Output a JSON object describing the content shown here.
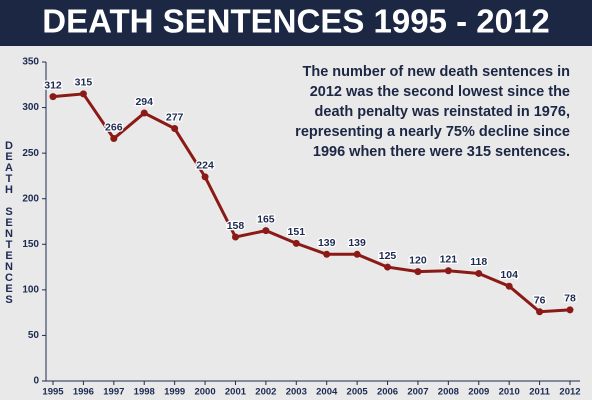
{
  "chart_data": {
    "type": "line",
    "title": "DEATH SENTENCES 1995 - 2012",
    "ylabel": "DEATH SENTENCES",
    "annotation": [
      "The number of new death sentences in",
      "2012 was the second lowest since the",
      "death penalty was reinstated in 1976,",
      "representing a nearly 75% decline since",
      "1996 when there were 315 sentences."
    ],
    "x": [
      1995,
      1996,
      1997,
      1998,
      1999,
      2000,
      2001,
      2002,
      2003,
      2004,
      2005,
      2006,
      2007,
      2008,
      2009,
      2010,
      2011,
      2012
    ],
    "series": [
      {
        "name": "Death sentences",
        "color": "#8b1a17",
        "values": [
          312,
          315,
          266,
          294,
          277,
          224,
          158,
          165,
          151,
          139,
          139,
          125,
          120,
          121,
          118,
          104,
          76,
          78
        ]
      }
    ],
    "xlim": [
      1995,
      2012
    ],
    "xticks": [
      1995,
      1996,
      1997,
      1998,
      1999,
      2000,
      2001,
      2002,
      2003,
      2004,
      2005,
      2006,
      2007,
      2008,
      2009,
      2010,
      2011,
      2012
    ],
    "ylim": [
      0,
      350
    ],
    "yticks": [
      0,
      50,
      100,
      150,
      200,
      250,
      300,
      350
    ]
  }
}
